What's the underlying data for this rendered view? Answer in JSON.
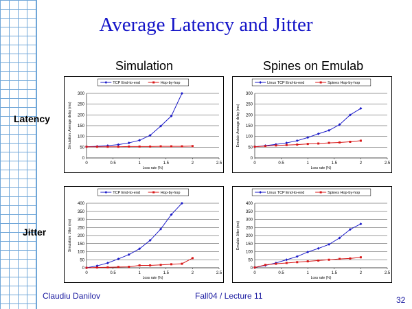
{
  "slide": {
    "title": "Average Latency and Jitter",
    "col_simulation": "Simulation",
    "col_emulab": "Spines on Emulab",
    "row_latency": "Latency",
    "row_jitter": "Jitter",
    "author": "Claudiu Danilov",
    "course": "Fall04 / Lecture 11",
    "page_number": "32",
    "grid_color": "#6fa6d8",
    "title_color": "#1515c8"
  },
  "chart_data": [
    {
      "id": "sim-latency",
      "type": "line",
      "title": "",
      "xlabel": "Loss rate (%)",
      "ylabel": "Simulation: Average delay (ms)",
      "xlim": [
        0,
        2.5
      ],
      "ylim": [
        0,
        300
      ],
      "xticks": [
        0,
        0.5,
        1,
        1.5,
        2,
        2.5
      ],
      "yticks": [
        0,
        50,
        100,
        150,
        200,
        250,
        300
      ],
      "legend_position": "top",
      "series": [
        {
          "name": "TCP End-to-end",
          "color": "#1c1cc8",
          "marker": "diamond",
          "x": [
            0,
            0.2,
            0.4,
            0.6,
            0.8,
            1.0,
            1.2,
            1.4,
            1.6,
            1.8
          ],
          "y": [
            52,
            54,
            57,
            62,
            70,
            82,
            105,
            148,
            195,
            300
          ]
        },
        {
          "name": "Hop-by-hop",
          "color": "#d81818",
          "marker": "square",
          "x": [
            0,
            0.2,
            0.4,
            0.6,
            0.8,
            1.0,
            1.2,
            1.4,
            1.6,
            1.8,
            2.0
          ],
          "y": [
            52,
            52,
            52,
            52,
            53,
            53,
            53,
            54,
            54,
            54,
            55
          ]
        }
      ]
    },
    {
      "id": "emu-latency",
      "type": "line",
      "title": "",
      "xlabel": "Loss rate (%)",
      "ylabel": "Emulab: Average delay (ms)",
      "xlim": [
        0,
        2.5
      ],
      "ylim": [
        0,
        300
      ],
      "xticks": [
        0,
        0.5,
        1,
        1.5,
        2,
        2.5
      ],
      "yticks": [
        0,
        50,
        100,
        150,
        200,
        250,
        300
      ],
      "legend_position": "top",
      "series": [
        {
          "name": "Linux TCP End-to-end",
          "color": "#1c1cc8",
          "marker": "diamond",
          "x": [
            0,
            0.2,
            0.4,
            0.6,
            0.8,
            1.0,
            1.2,
            1.4,
            1.6,
            1.8,
            2.0
          ],
          "y": [
            52,
            57,
            63,
            70,
            80,
            95,
            112,
            128,
            155,
            200,
            230
          ]
        },
        {
          "name": "Spines Hop-by-hop",
          "color": "#d81818",
          "marker": "square",
          "x": [
            0,
            0.2,
            0.4,
            0.6,
            0.8,
            1.0,
            1.2,
            1.4,
            1.6,
            1.8,
            2.0
          ],
          "y": [
            52,
            55,
            58,
            60,
            62,
            65,
            67,
            70,
            72,
            75,
            80
          ]
        }
      ]
    },
    {
      "id": "sim-jitter",
      "type": "line",
      "title": "",
      "xlabel": "Loss rate (%)",
      "ylabel": "Simulation: Jitter (ms)",
      "xlim": [
        0,
        2.5
      ],
      "ylim": [
        0,
        400
      ],
      "xticks": [
        0,
        0.5,
        1,
        1.5,
        2,
        2.5
      ],
      "yticks": [
        0,
        50,
        100,
        150,
        200,
        250,
        300,
        350,
        400
      ],
      "legend_position": "top",
      "series": [
        {
          "name": "TCP End-to-end",
          "color": "#1c1cc8",
          "marker": "diamond",
          "x": [
            0,
            0.2,
            0.4,
            0.6,
            0.8,
            1.0,
            1.2,
            1.4,
            1.6,
            1.8
          ],
          "y": [
            0,
            12,
            30,
            55,
            82,
            118,
            170,
            240,
            330,
            400
          ]
        },
        {
          "name": "Hop-by-hop",
          "color": "#d81818",
          "marker": "square",
          "x": [
            0,
            0.2,
            0.4,
            0.6,
            0.8,
            1.0,
            1.2,
            1.4,
            1.6,
            1.8,
            2.0
          ],
          "y": [
            0,
            2,
            3,
            5,
            6,
            15,
            15,
            18,
            22,
            25,
            60
          ]
        }
      ]
    },
    {
      "id": "emu-jitter",
      "type": "line",
      "title": "",
      "xlabel": "Loss rate (%)",
      "ylabel": "Emulab: Jitter (ms)",
      "xlim": [
        0,
        2.5
      ],
      "ylim": [
        0,
        400
      ],
      "xticks": [
        0,
        0.5,
        1,
        1.5,
        2,
        2.5
      ],
      "yticks": [
        0,
        50,
        100,
        150,
        200,
        250,
        300,
        350,
        400
      ],
      "legend_position": "top",
      "series": [
        {
          "name": "Linux TCP End-to-end",
          "color": "#1c1cc8",
          "marker": "diamond",
          "x": [
            0,
            0.2,
            0.4,
            0.6,
            0.8,
            1.0,
            1.2,
            1.4,
            1.6,
            1.8,
            2.0
          ],
          "y": [
            2,
            15,
            30,
            50,
            70,
            98,
            120,
            145,
            185,
            238,
            272
          ]
        },
        {
          "name": "Spines Hop-by-hop",
          "color": "#d81818",
          "marker": "square",
          "x": [
            0,
            0.2,
            0.4,
            0.6,
            0.8,
            1.0,
            1.2,
            1.4,
            1.6,
            1.8,
            2.0
          ],
          "y": [
            2,
            18,
            25,
            30,
            35,
            40,
            45,
            50,
            55,
            58,
            65
          ]
        }
      ]
    }
  ]
}
